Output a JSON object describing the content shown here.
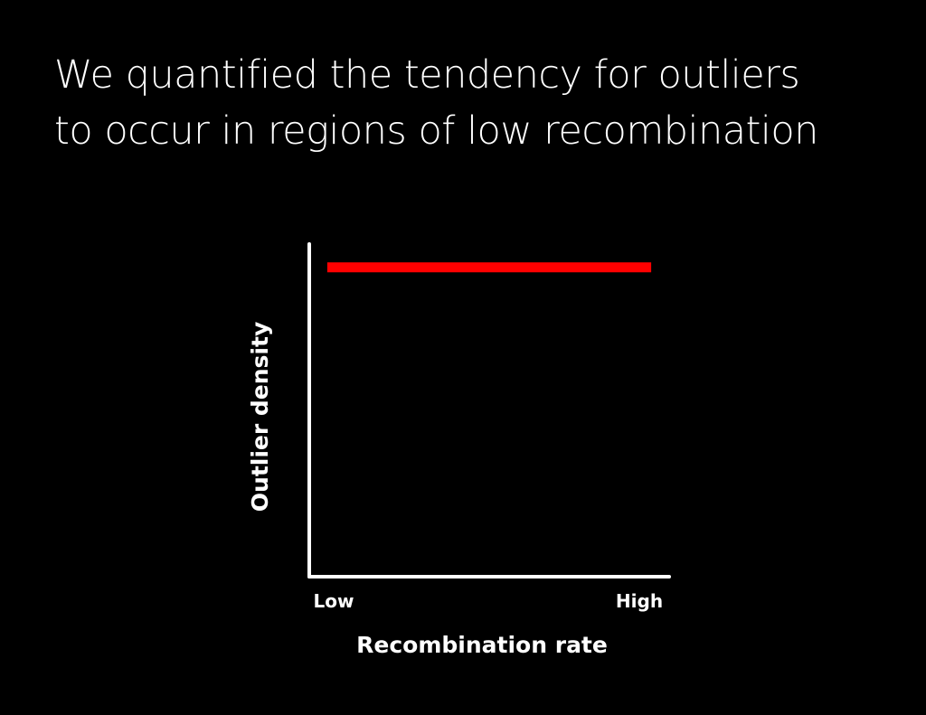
{
  "slide": {
    "title_lines": [
      "We quantified the tendency for outliers",
      "to occur in regions of low recombination"
    ]
  },
  "colors": {
    "background": "#000000",
    "axis": "#ffffff",
    "series": "#ff0000"
  },
  "chart_data": {
    "type": "line",
    "xlabel": "Recombination rate",
    "ylabel": "Outlier density",
    "x_ticks": [
      "Low",
      "High"
    ],
    "xlim": [
      0,
      1
    ],
    "ylim": [
      0,
      1
    ],
    "grid": false,
    "legend": "none",
    "series": [
      {
        "color": "#ff0000",
        "points": [
          {
            "x": 0.05,
            "y": 0.93
          },
          {
            "x": 0.95,
            "y": 0.93
          }
        ]
      }
    ]
  }
}
